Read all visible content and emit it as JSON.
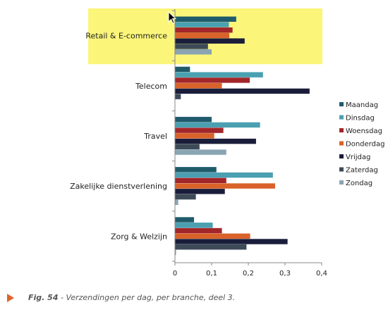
{
  "figure": {
    "label": "Fig. 54",
    "caption": " - Verzendingen per dag, per branche, deel 3.",
    "arrow_color": "#e0632b"
  },
  "chart_data": {
    "type": "bar",
    "orientation": "horizontal",
    "categories": [
      "Retail & E-commerce",
      "Telecom",
      "Travel",
      "Zakelijke dienstverlening",
      "Zorg & Welzijn"
    ],
    "series": [
      {
        "name": "Maandag",
        "color": "#1f5b6b",
        "values": [
          0.167,
          0.041,
          0.1,
          0.113,
          0.052
        ]
      },
      {
        "name": "Dinsdag",
        "color": "#4aa0b1",
        "values": [
          0.147,
          0.24,
          0.232,
          0.267,
          0.103
        ]
      },
      {
        "name": "Woensdag",
        "color": "#a2262a",
        "values": [
          0.157,
          0.204,
          0.132,
          0.14,
          0.128
        ]
      },
      {
        "name": "Donderdag",
        "color": "#d9622a",
        "values": [
          0.148,
          0.128,
          0.107,
          0.273,
          0.205
        ]
      },
      {
        "name": "Vrijdag",
        "color": "#1a1d3a",
        "values": [
          0.19,
          0.367,
          0.221,
          0.136,
          0.307
        ]
      },
      {
        "name": "Zaterdag",
        "color": "#3d4a57",
        "values": [
          0.09,
          0.016,
          0.067,
          0.057,
          0.195
        ]
      },
      {
        "name": "Zondag",
        "color": "#8aa4b2",
        "values": [
          0.1,
          0.0,
          0.14,
          0.009,
          0.003
        ]
      }
    ],
    "xlim": [
      0,
      0.4
    ],
    "xticks": [
      "0",
      "0,1",
      "0,2",
      "0,3",
      "0,4"
    ],
    "legend_position": "right",
    "highlight": {
      "category": "Retail & E-commerce",
      "color": "#fbf57a"
    },
    "grid": false
  }
}
